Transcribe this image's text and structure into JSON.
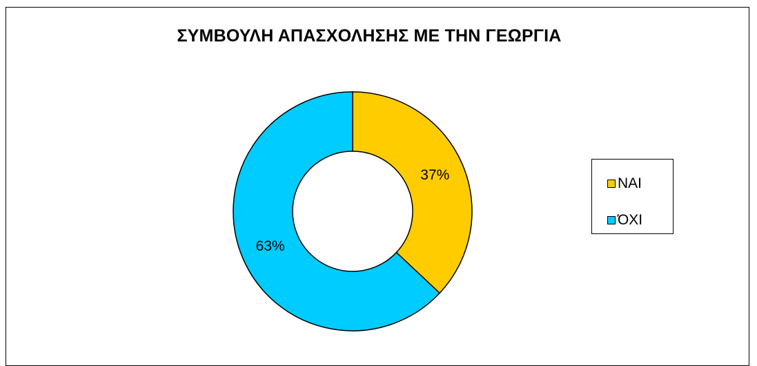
{
  "chart_data": {
    "type": "donut",
    "title": "ΣΥΜΒΟΥΛΗ ΑΠΑΣΧΟΛΗΣΗΣ ΜΕ ΤΗΝ ΓΕΩΡΓΙΑ",
    "categories": [
      "ΝΑΙ",
      "ΌΧΙ"
    ],
    "values": [
      37,
      63
    ],
    "data_labels": [
      "37%",
      "63%"
    ],
    "colors": [
      "#FFCC00",
      "#00CCFF"
    ],
    "legend_position": "right"
  }
}
